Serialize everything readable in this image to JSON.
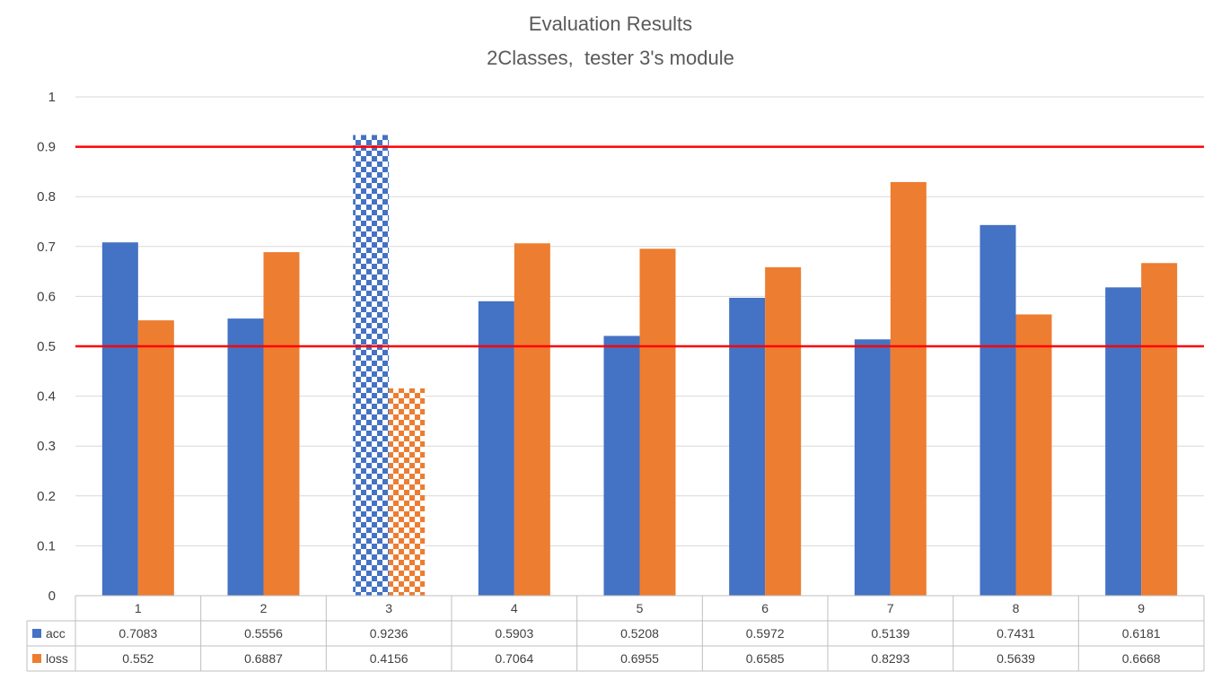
{
  "chart_data": {
    "type": "bar",
    "title": "Evaluation Results",
    "subtitle": "2Classes,  tester 3's module",
    "categories": [
      "1",
      "2",
      "3",
      "4",
      "5",
      "6",
      "7",
      "8",
      "9"
    ],
    "series": [
      {
        "name": "acc",
        "color": "#4472c4",
        "values": [
          0.7083,
          0.5556,
          0.9236,
          0.5903,
          0.5208,
          0.5972,
          0.5139,
          0.7431,
          0.6181
        ],
        "labels": [
          "0.7083",
          "0.5556",
          "0.9236",
          "0.5903",
          "0.5208",
          "0.5972",
          "0.5139",
          "0.7431",
          "0.6181"
        ]
      },
      {
        "name": "loss",
        "color": "#ed7d31",
        "values": [
          0.552,
          0.6887,
          0.4156,
          0.7064,
          0.6955,
          0.6585,
          0.8293,
          0.5639,
          0.6668
        ],
        "labels": [
          "0.552",
          "0.6887",
          "0.4156",
          "0.7064",
          "0.6955",
          "0.6585",
          "0.8293",
          "0.5639",
          "0.6668"
        ]
      }
    ],
    "ylim": [
      0,
      1
    ],
    "yticks": [
      "0",
      "0.1",
      "0.2",
      "0.3",
      "0.4",
      "0.5",
      "0.6",
      "0.7",
      "0.8",
      "0.9",
      "1"
    ],
    "reference_lines": [
      {
        "y": 0.9,
        "color": "#ff0000"
      },
      {
        "y": 0.5,
        "color": "#ff0000"
      }
    ],
    "highlighted_category": "3",
    "highlight_pattern": "checkerboard",
    "grid": true,
    "legend": "data-table",
    "xlabel": "",
    "ylabel": ""
  }
}
